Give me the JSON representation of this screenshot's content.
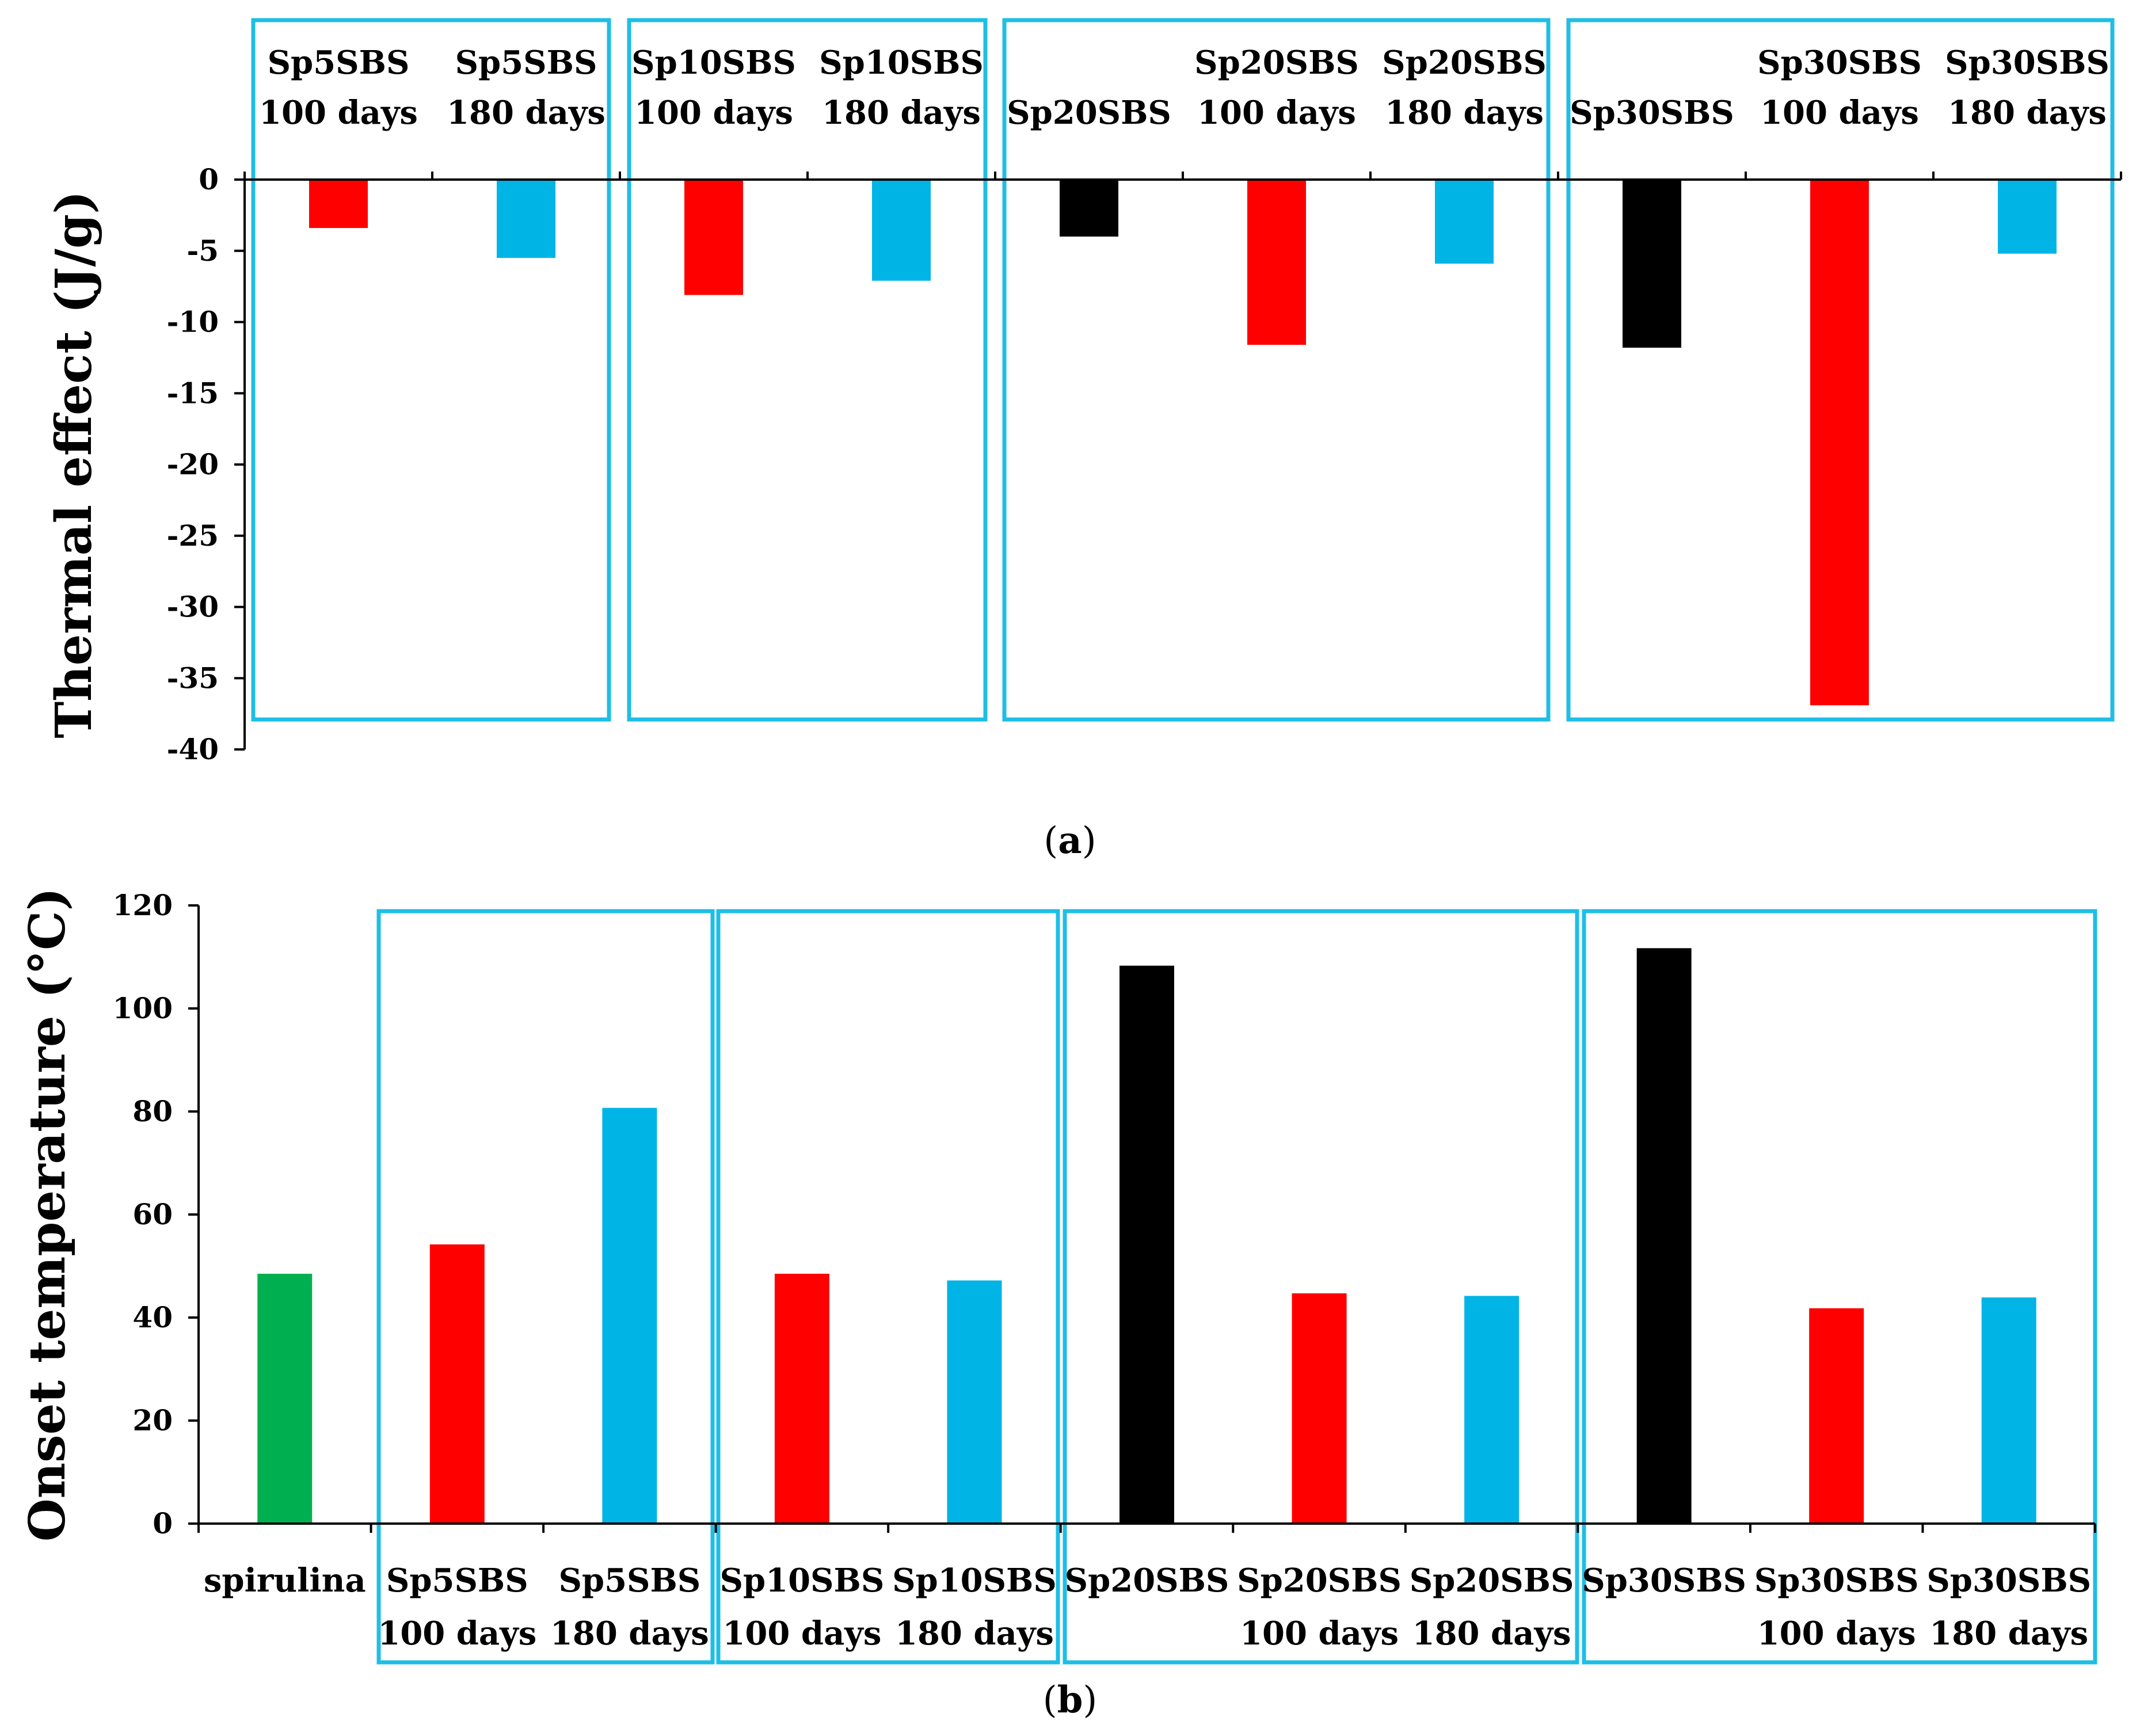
{
  "colors": {
    "group_box": "#1EBEE6",
    "aged_100_days": "#FF0000",
    "aged_180_days": "#00B4E6",
    "unaged": "#000000",
    "spirulina": "#00B050",
    "axis": "#000000"
  },
  "chart_data": [
    {
      "type": "bar",
      "panel": "a",
      "caption_open": "(",
      "caption_letter": "a",
      "caption_close": ")",
      "ylabel": "Thermal effect (J/g)",
      "xlabel": "",
      "ylim": [
        -40,
        0
      ],
      "yticks": [
        "0",
        "-5",
        "-10",
        "-15",
        "-20",
        "-25",
        "-30",
        "-35",
        "-40"
      ],
      "category_position": "top",
      "categories": [
        {
          "line1": "Sp5SBS",
          "line2": "100 days",
          "value": -3.4,
          "color_key": "aged_100_days"
        },
        {
          "line1": "Sp5SBS",
          "line2": "180 days",
          "value": -5.5,
          "color_key": "aged_180_days"
        },
        {
          "line1": "Sp10SBS",
          "line2": "100 days",
          "value": -8.1,
          "color_key": "aged_100_days"
        },
        {
          "line1": "Sp10SBS",
          "line2": "180 days",
          "value": -7.1,
          "color_key": "aged_180_days"
        },
        {
          "line1": "",
          "line2": "Sp20SBS",
          "value": -4.0,
          "color_key": "unaged"
        },
        {
          "line1": "Sp20SBS",
          "line2": "100 days",
          "value": -11.6,
          "color_key": "aged_100_days"
        },
        {
          "line1": "Sp20SBS",
          "line2": "180 days",
          "value": -5.9,
          "color_key": "aged_180_days"
        },
        {
          "line1": "",
          "line2": "Sp30SBS",
          "value": -11.8,
          "color_key": "unaged"
        },
        {
          "line1": "Sp30SBS",
          "line2": "100 days",
          "value": -36.9,
          "color_key": "aged_100_days"
        },
        {
          "line1": "Sp30SBS",
          "line2": "180 days",
          "value": -5.2,
          "color_key": "aged_180_days"
        }
      ],
      "groups": [
        {
          "name": "Sp5SBS",
          "first": 0,
          "last": 1
        },
        {
          "name": "Sp10SBS",
          "first": 2,
          "last": 3
        },
        {
          "name": "Sp20SBS",
          "first": 4,
          "last": 6
        },
        {
          "name": "Sp30SBS",
          "first": 7,
          "last": 9
        }
      ]
    },
    {
      "type": "bar",
      "panel": "b",
      "caption_open": "(",
      "caption_letter": "b",
      "caption_close": ")",
      "ylabel": "Onset temperature (°C)",
      "xlabel": "",
      "ylim": [
        0,
        120
      ],
      "yticks": [
        "0",
        "20",
        "40",
        "60",
        "80",
        "100",
        "120"
      ],
      "category_position": "bottom",
      "categories": [
        {
          "line1": "spirulina",
          "line2": "",
          "value": 48.5,
          "color_key": "spirulina"
        },
        {
          "line1": "Sp5SBS",
          "line2": "100 days",
          "value": 54.2,
          "color_key": "aged_100_days"
        },
        {
          "line1": "Sp5SBS",
          "line2": "180 days",
          "value": 80.7,
          "color_key": "aged_180_days"
        },
        {
          "line1": "Sp10SBS",
          "line2": "100 days",
          "value": 48.5,
          "color_key": "aged_100_days"
        },
        {
          "line1": "Sp10SBS",
          "line2": "180 days",
          "value": 47.2,
          "color_key": "aged_180_days"
        },
        {
          "line1": "Sp20SBS",
          "line2": "",
          "value": 108.3,
          "color_key": "unaged"
        },
        {
          "line1": "Sp20SBS",
          "line2": "100 days",
          "value": 44.7,
          "color_key": "aged_100_days"
        },
        {
          "line1": "Sp20SBS",
          "line2": "180 days",
          "value": 44.2,
          "color_key": "aged_180_days"
        },
        {
          "line1": "Sp30SBS",
          "line2": "",
          "value": 111.7,
          "color_key": "unaged"
        },
        {
          "line1": "Sp30SBS",
          "line2": "100 days",
          "value": 41.8,
          "color_key": "aged_100_days"
        },
        {
          "line1": "Sp30SBS",
          "line2": "180 days",
          "value": 43.9,
          "color_key": "aged_180_days"
        }
      ],
      "groups": [
        {
          "name": "Sp5SBS",
          "first": 1,
          "last": 2
        },
        {
          "name": "Sp10SBS",
          "first": 3,
          "last": 4
        },
        {
          "name": "Sp20SBS",
          "first": 5,
          "last": 7
        },
        {
          "name": "Sp30SBS",
          "first": 8,
          "last": 10
        }
      ]
    }
  ]
}
